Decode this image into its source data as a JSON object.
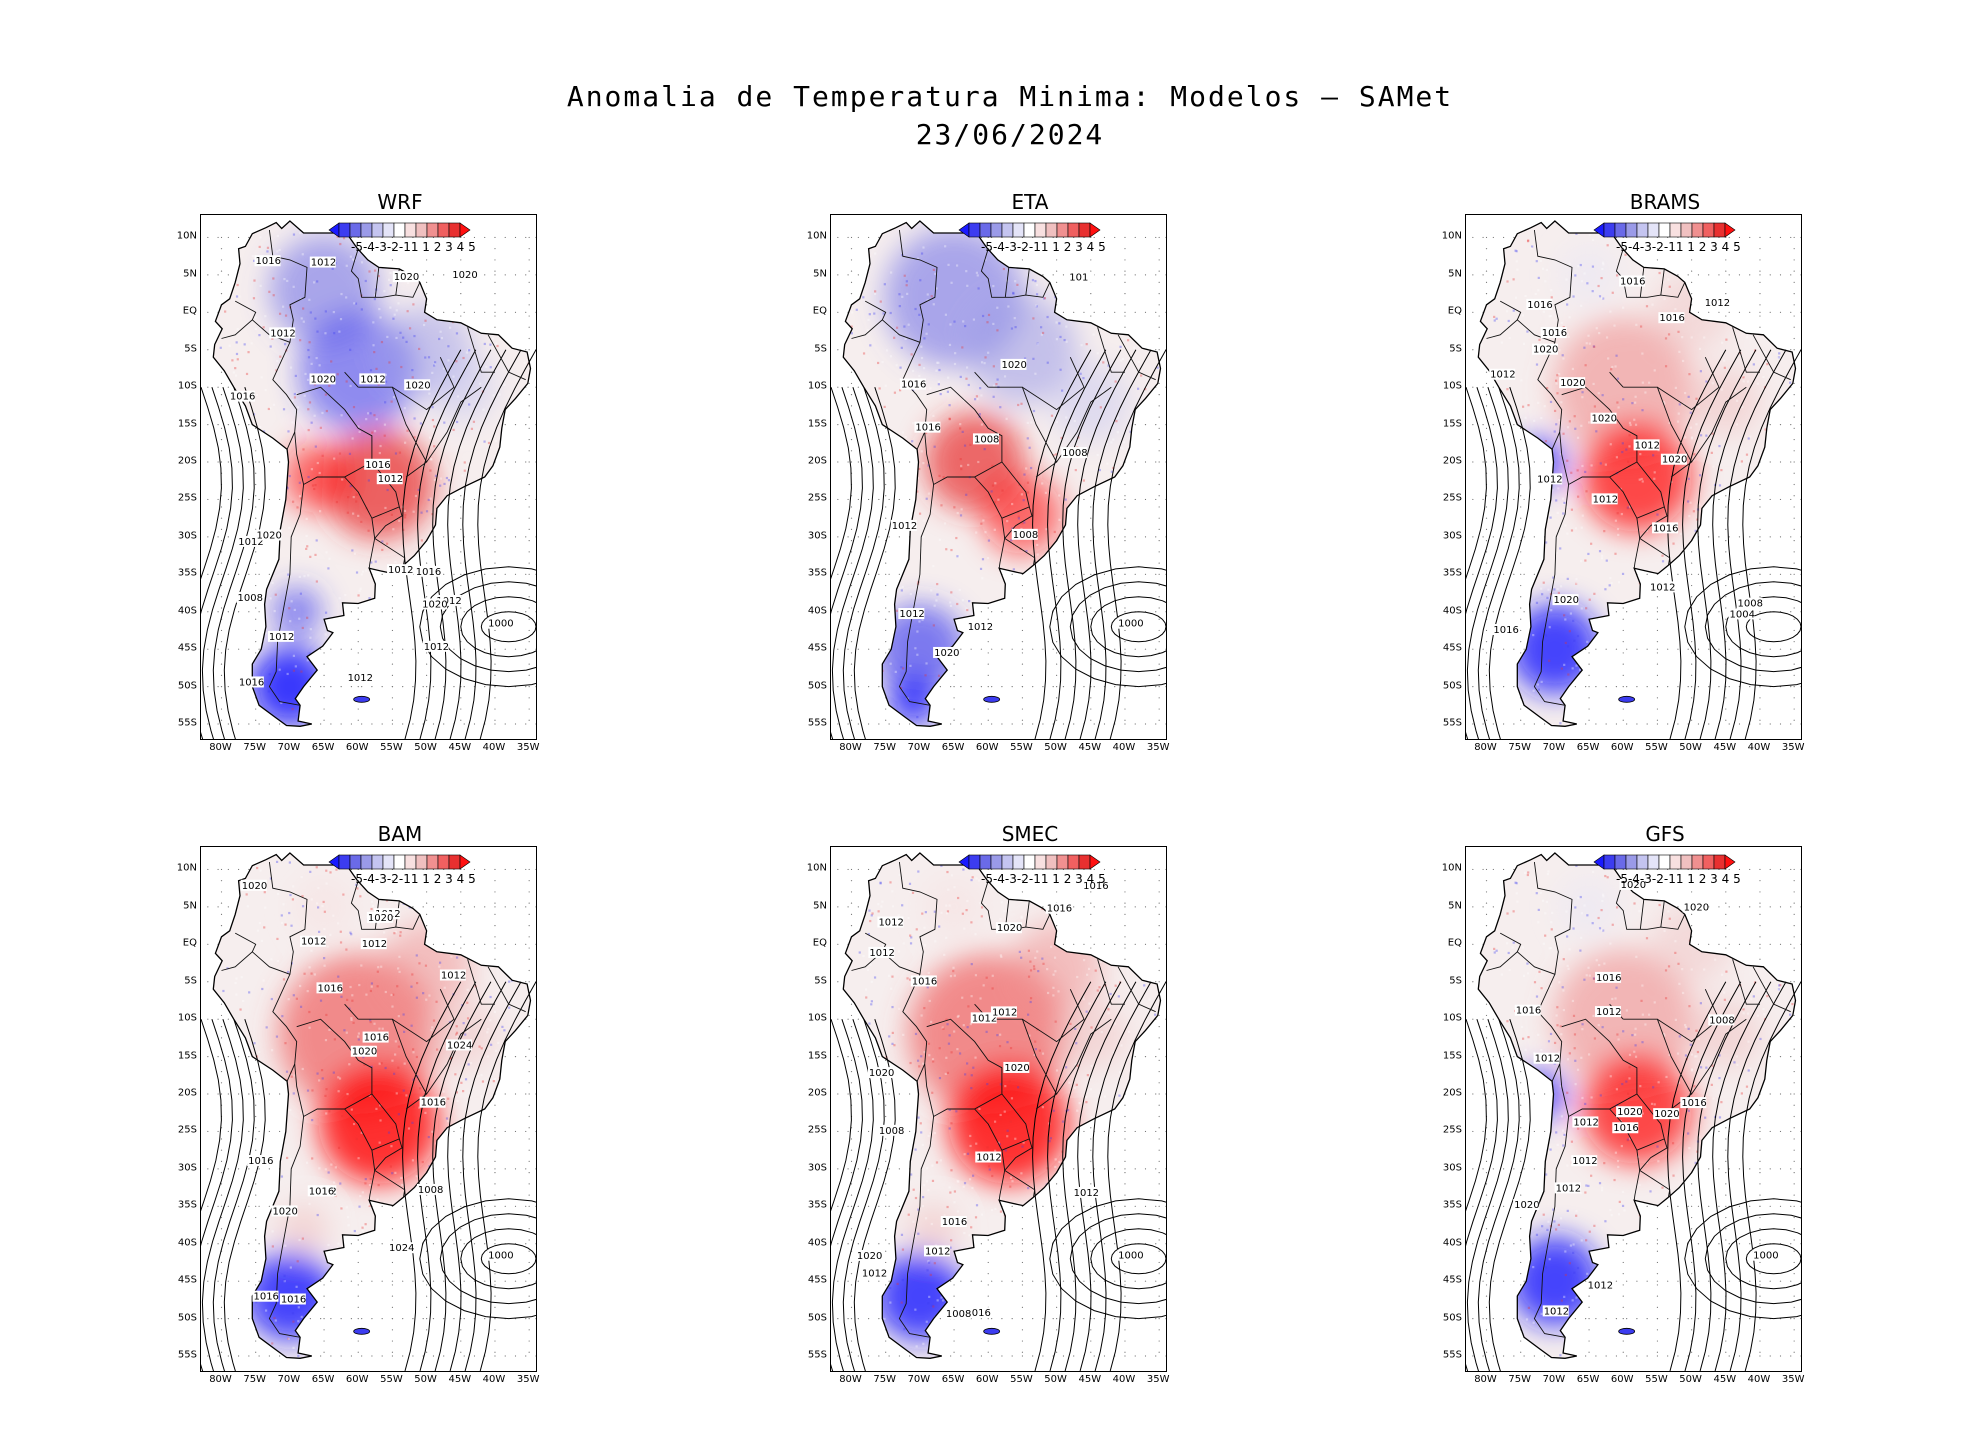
{
  "title_line1": "Anomalia de Temperatura Minima: Modelos — SAMet",
  "title_line2": "23/06/2024",
  "lat_ticks": [
    "10N",
    "5N",
    "EQ",
    "5S",
    "10S",
    "15S",
    "20S",
    "25S",
    "30S",
    "35S",
    "40S",
    "45S",
    "50S",
    "55S"
  ],
  "lon_ticks": [
    "80W",
    "75W",
    "70W",
    "65W",
    "60W",
    "55W",
    "50W",
    "45W",
    "40W",
    "35W"
  ],
  "colorbar": {
    "labels": "-5-4-3-2-11 1 2 3 4 5",
    "colors": [
      "#1a1aff",
      "#3c3cf0",
      "#6a6ae8",
      "#9a9ae8",
      "#c4c4f0",
      "#e4e4f8",
      "#ffffff",
      "#f8e0e0",
      "#f0c0c0",
      "#f09090",
      "#f06060",
      "#e83030",
      "#ff1010"
    ]
  },
  "panels": [
    {
      "name": "WRF",
      "style": "mixed_blue_north",
      "isobar_labels": [
        "1012",
        "1012",
        "1012",
        "1012",
        "1016",
        "1012",
        "1020",
        "1012",
        "1012",
        "1012",
        "1020",
        "1016",
        "1012",
        "1008",
        "1016",
        "1012",
        "1020",
        "1016",
        "1016",
        "1020",
        "1000",
        "1020",
        "1020"
      ]
    },
    {
      "name": "ETA",
      "style": "blue_north",
      "isobar_labels": [
        "1008",
        "1012",
        "1008",
        "1012",
        "1016",
        "1016",
        "1012",
        "1008",
        "1020",
        "1000",
        "1020",
        "101"
      ]
    },
    {
      "name": "BRAMS",
      "style": "red_center",
      "isobar_labels": [
        "1012",
        "1016",
        "1012",
        "1012",
        "1016",
        "1020",
        "1012",
        "1016",
        "1012",
        "1016",
        "1016",
        "1020",
        "1016",
        "1012",
        "1020",
        "1020",
        "1020",
        "1004",
        "1008"
      ]
    },
    {
      "name": "BAM",
      "style": "strong_red",
      "isobar_labels": [
        "1012",
        "1012",
        "1016",
        "1012",
        "1012",
        "1016",
        "1016",
        "1020",
        "1008",
        "1016",
        "1024",
        "1016",
        "1012",
        "1016",
        "1016",
        "1020",
        "1024",
        "1020",
        "1000",
        "1020"
      ]
    },
    {
      "name": "SMEC",
      "style": "strong_red",
      "isobar_labels": [
        "1012",
        "1012",
        "1012",
        "1012",
        "1012",
        "1016",
        "1012",
        "1012",
        "1016",
        "1020",
        "1016",
        "1020",
        "1008",
        "1016",
        "1012",
        "1016",
        "1008",
        "1000",
        "1020",
        "1020"
      ]
    },
    {
      "name": "GFS",
      "style": "red_center",
      "isobar_labels": [
        "1012",
        "1012",
        "1012",
        "1016",
        "1016",
        "1012",
        "1012",
        "1016",
        "1020",
        "1016",
        "1012",
        "1008",
        "1012",
        "1020",
        "1020",
        "1000",
        "1020",
        "1020"
      ]
    }
  ]
}
